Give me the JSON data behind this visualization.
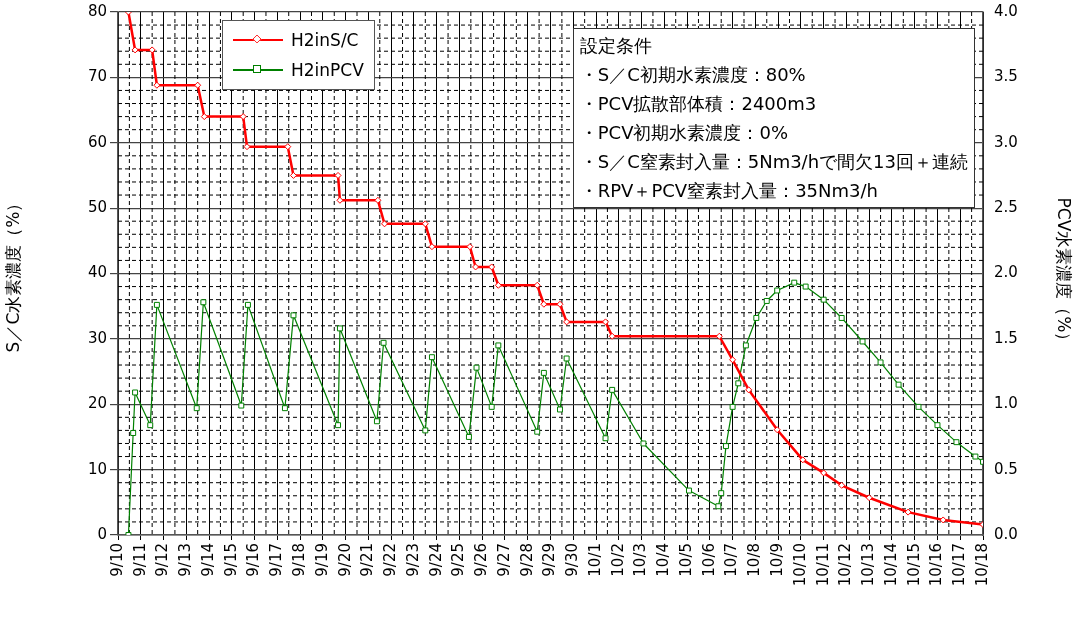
{
  "chart_data": {
    "type": "line",
    "ylabel": "S／C水素濃度（%）",
    "y2label": "PCV水素濃度（%）",
    "xlim": [
      "--09-10",
      "--10-18"
    ],
    "xticks": [
      {
        "value": "--09-10",
        "label": "9/10"
      },
      {
        "value": "--09-11",
        "label": "9/11"
      },
      {
        "value": "--09-12",
        "label": "9/12"
      },
      {
        "value": "--09-13",
        "label": "9/13"
      },
      {
        "value": "--09-14",
        "label": "9/14"
      },
      {
        "value": "--09-15",
        "label": "9/15"
      },
      {
        "value": "--09-16",
        "label": "9/16"
      },
      {
        "value": "--09-17",
        "label": "9/17"
      },
      {
        "value": "--09-18",
        "label": "9/18"
      },
      {
        "value": "--09-19",
        "label": "9/19"
      },
      {
        "value": "--09-20",
        "label": "9/20"
      },
      {
        "value": "--09-21",
        "label": "9/21"
      },
      {
        "value": "--09-22",
        "label": "9/22"
      },
      {
        "value": "--09-23",
        "label": "9/23"
      },
      {
        "value": "--09-24",
        "label": "9/24"
      },
      {
        "value": "--09-25",
        "label": "9/25"
      },
      {
        "value": "--09-26",
        "label": "9/26"
      },
      {
        "value": "--09-27",
        "label": "9/27"
      },
      {
        "value": "--09-28",
        "label": "9/28"
      },
      {
        "value": "--09-29",
        "label": "9/29"
      },
      {
        "value": "--09-30",
        "label": "9/30"
      },
      {
        "value": "--10-01",
        "label": "10/1"
      },
      {
        "value": "--10-02",
        "label": "10/2"
      },
      {
        "value": "--10-03",
        "label": "10/3"
      },
      {
        "value": "--10-04",
        "label": "10/4"
      },
      {
        "value": "--10-05",
        "label": "10/5"
      },
      {
        "value": "--10-06",
        "label": "10/6"
      },
      {
        "value": "--10-07",
        "label": "10/7"
      },
      {
        "value": "--10-08",
        "label": "10/8"
      },
      {
        "value": "--10-09",
        "label": "10/9"
      },
      {
        "value": "--10-10",
        "label": "10/10"
      },
      {
        "value": "--10-11",
        "label": "10/11"
      },
      {
        "value": "--10-12",
        "label": "10/12"
      },
      {
        "value": "--10-13",
        "label": "10/13"
      },
      {
        "value": "--10-14",
        "label": "10/14"
      },
      {
        "value": "--10-15",
        "label": "10/15"
      },
      {
        "value": "--10-16",
        "label": "10/16"
      },
      {
        "value": "--10-17",
        "label": "10/17"
      },
      {
        "value": "--10-18",
        "label": "10/18"
      }
    ],
    "ylim": [
      0,
      80
    ],
    "yticks": [
      0,
      10,
      20,
      30,
      40,
      50,
      60,
      70,
      80
    ],
    "y2lim": [
      0,
      4
    ],
    "y2ticks": [
      {
        "value": 0,
        "label": "0.0"
      },
      {
        "value": 0.5,
        "label": "0.5"
      },
      {
        "value": 1,
        "label": "1.0"
      },
      {
        "value": 1.5,
        "label": "1.5"
      },
      {
        "value": 2,
        "label": "2.0"
      },
      {
        "value": 2.5,
        "label": "2.5"
      },
      {
        "value": 3,
        "label": "3.0"
      },
      {
        "value": 3.5,
        "label": "3.5"
      },
      {
        "value": 4,
        "label": "4.0"
      }
    ],
    "grid": true,
    "legend": "top left",
    "line_style": "solid",
    "series": [
      {
        "name": "H2inS/C",
        "color": "#ff0000",
        "marker": "diamond",
        "x": [
          "--09-10T11:00",
          "--09-10T18:00",
          "--09-11T12:00",
          "--09-11T17:00",
          "--09-13T12:00",
          "--09-13T19:00",
          "--09-15T12:00",
          "--09-15T16:00",
          "--09-17T11:00",
          "--09-17T17:00",
          "--09-19T16:00",
          "--09-19T18:00",
          "--09-21T10:00",
          "--09-21T17:00",
          "--09-23T12:00",
          "--09-23T19:00",
          "--09-25T11:00",
          "--09-25T17:00",
          "--09-26T10:00",
          "--09-26T17:00",
          "--09-28T10:00",
          "--09-28T17:00",
          "--09-29T10:00",
          "--09-29T17:00",
          "--10-01T10:00",
          "--10-01T17:00",
          "--10-06T10:00",
          "--10-07T00:00",
          "--10-07T17:00",
          "--10-08T23:00",
          "--10-10T02:00",
          "--10-11T00:00",
          "--10-11T19:00",
          "--10-13T00:00",
          "--10-14T17:00",
          "--10-16T06:00",
          "--10-18T00:00"
        ],
        "values": [
          80,
          74.2,
          74.2,
          68.8,
          68.8,
          64.0,
          64.0,
          59.4,
          59.4,
          55.0,
          55.0,
          51.2,
          51.2,
          47.6,
          47.6,
          44.1,
          44.1,
          41.0,
          41.0,
          38.2,
          38.2,
          35.3,
          35.3,
          32.6,
          32.6,
          30.4,
          30.4,
          26.8,
          22.2,
          16.1,
          11.5,
          9.5,
          7.6,
          5.7,
          3.5,
          2.3,
          1.6
        ]
      },
      {
        "name": "H2inPCV",
        "color": "#008000",
        "marker": "square",
        "axis": "y2",
        "x": [
          "--09-10T11:00",
          "--09-10T16:00",
          "--09-10T18:00",
          "--09-11T10:00",
          "--09-11T17:00",
          "--09-13T11:00",
          "--09-13T18:00",
          "--09-15T10:00",
          "--09-15T17:00",
          "--09-17T08:00",
          "--09-17T17:00",
          "--09-19T16:00",
          "--09-19T18:00",
          "--09-21T09:00",
          "--09-21T16:00",
          "--09-23T12:00",
          "--09-23T19:00",
          "--09-25T10:00",
          "--09-25T18:00",
          "--09-26T10:00",
          "--09-26T17:00",
          "--09-28T10:00",
          "--09-28T17:00",
          "--09-29T10:00",
          "--09-29T17:00",
          "--10-01T10:00",
          "--10-01T17:00",
          "--10-03T02:00",
          "--10-05T02:00",
          "--10-06T09:00",
          "--10-06T12:00",
          "--10-06T17:00",
          "--10-07T00:00",
          "--10-07T06:00",
          "--10-07T14:00",
          "--10-08T01:00",
          "--10-08T12:00",
          "--10-08T23:00",
          "--10-09T17:00",
          "--10-10T05:00",
          "--10-11T00:00",
          "--10-11T19:00",
          "--10-12T17:00",
          "--10-13T12:00",
          "--10-14T07:00",
          "--10-15T04:00",
          "--10-16T00:00",
          "--10-16T20:00",
          "--10-17T16:00",
          "--10-18T00:00"
        ],
        "values": [
          0,
          0.78,
          1.09,
          0.84,
          1.76,
          0.97,
          1.78,
          0.99,
          1.76,
          0.97,
          1.68,
          0.84,
          1.58,
          0.87,
          1.47,
          0.8,
          1.36,
          0.75,
          1.28,
          0.98,
          1.45,
          0.79,
          1.24,
          0.96,
          1.35,
          0.74,
          1.11,
          0.7,
          0.34,
          0.22,
          0.32,
          0.68,
          0.98,
          1.16,
          1.45,
          1.66,
          1.79,
          1.87,
          1.93,
          1.9,
          1.8,
          1.66,
          1.48,
          1.32,
          1.15,
          0.98,
          0.84,
          0.71,
          0.6,
          0.56
        ]
      }
    ],
    "annotations": [
      "設定条件",
      "・S／C初期水素濃度：80%",
      "・PCV拡散部体積：2400m3",
      "・PCV初期水素濃度：0%",
      "・S／C窒素封入量：5Nm3/hで間欠13回＋連続",
      "・RPV＋PCV窒素封入量：35Nm3/h"
    ]
  }
}
